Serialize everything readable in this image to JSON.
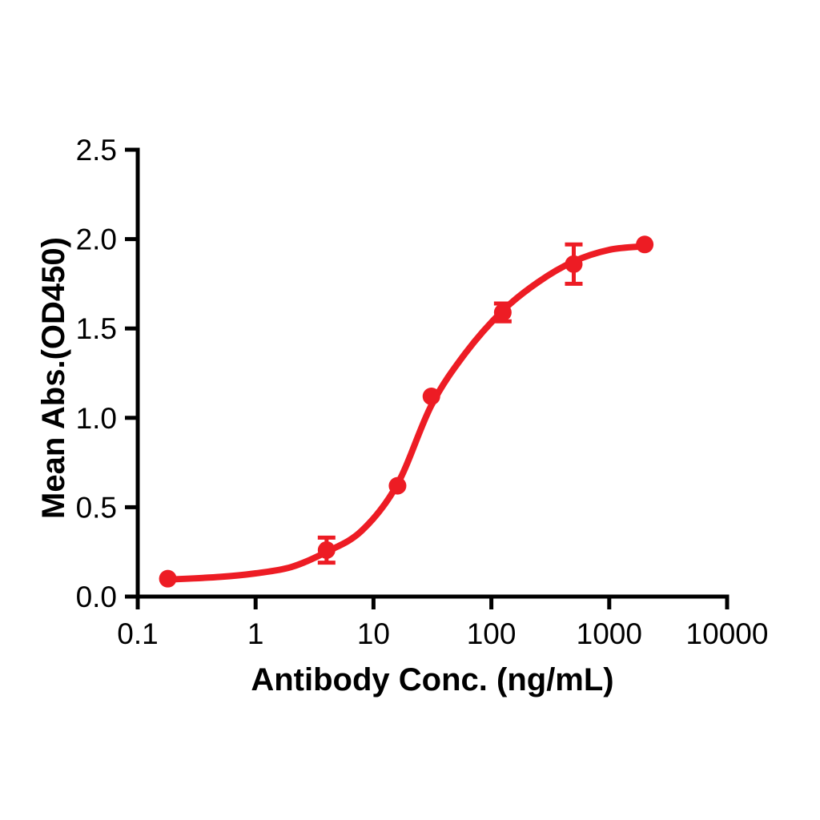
{
  "chart_data": {
    "type": "scatter",
    "curve_fit": "sigmoidal-dose-response",
    "title": "",
    "xlabel": "Antibody Conc. (ng/mL)",
    "ylabel": "Mean Abs.(OD450)",
    "x_scale": "log10",
    "xlim": [
      0.1,
      10000
    ],
    "ylim": [
      0.0,
      2.5
    ],
    "x_ticks": [
      "0.1",
      "1",
      "10",
      "100",
      "1000",
      "10000"
    ],
    "y_ticks": [
      "0.0",
      "0.5",
      "1.0",
      "1.5",
      "2.0",
      "2.5"
    ],
    "grid": false,
    "legend": false,
    "colors": {
      "series": "#ED1C24",
      "axis": "#000000",
      "background": "#ffffff"
    },
    "points": [
      {
        "x": 0.18,
        "y": 0.1,
        "err": 0
      },
      {
        "x": 4,
        "y": 0.26,
        "err": 0.07
      },
      {
        "x": 16,
        "y": 0.62,
        "err": 0
      },
      {
        "x": 31,
        "y": 1.12,
        "err": 0
      },
      {
        "x": 125,
        "y": 1.59,
        "err": 0.05
      },
      {
        "x": 500,
        "y": 1.86,
        "err": 0.11
      },
      {
        "x": 2000,
        "y": 1.97,
        "err": 0
      }
    ],
    "fit_curve_points": [
      [
        0.18,
        0.095
      ],
      [
        0.5,
        0.11
      ],
      [
        1,
        0.13
      ],
      [
        2,
        0.165
      ],
      [
        4,
        0.25
      ],
      [
        8,
        0.37
      ],
      [
        16,
        0.63
      ],
      [
        31,
        1.07
      ],
      [
        60,
        1.36
      ],
      [
        125,
        1.6
      ],
      [
        250,
        1.76
      ],
      [
        500,
        1.875
      ],
      [
        1000,
        1.94
      ],
      [
        2000,
        1.96
      ]
    ]
  }
}
